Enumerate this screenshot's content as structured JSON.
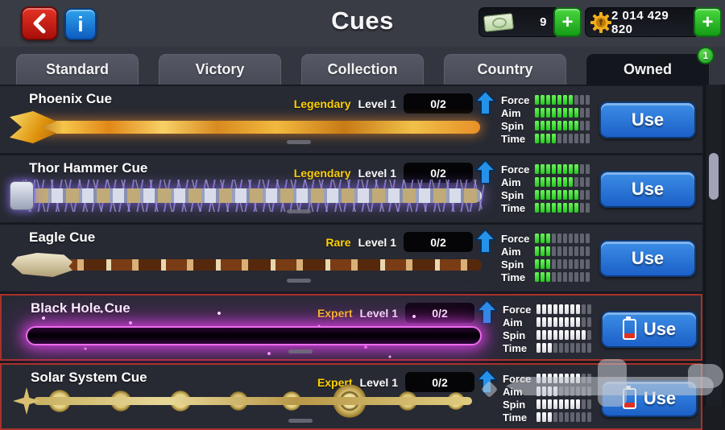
{
  "header": {
    "title": "Cues",
    "cash": {
      "value": "9",
      "add": "+"
    },
    "coins": {
      "value": "2 014 429 820",
      "add": "+"
    }
  },
  "tabs": [
    {
      "label": "Standard",
      "active": false
    },
    {
      "label": "Victory",
      "active": false
    },
    {
      "label": "Collection",
      "active": false
    },
    {
      "label": "Country",
      "active": false
    },
    {
      "label": "Owned",
      "active": true
    }
  ],
  "owned_badge": "1",
  "stat_labels": [
    "Force",
    "Aim",
    "Spin",
    "Time"
  ],
  "use_label": "Use",
  "cues": [
    {
      "name": "Phoenix Cue",
      "rarity": "Legendary",
      "level": "Level 1",
      "progress": "0/2",
      "stats": [
        7,
        8,
        8,
        4
      ],
      "max_segments": 10,
      "bar_style": "green",
      "highlight": false,
      "battery": false,
      "theme": "phoenix"
    },
    {
      "name": "Thor Hammer Cue",
      "rarity": "Legendary",
      "level": "Level 1",
      "progress": "0/2",
      "stats": [
        8,
        7,
        8,
        8
      ],
      "max_segments": 10,
      "bar_style": "green",
      "highlight": false,
      "battery": false,
      "theme": "thor"
    },
    {
      "name": "Eagle Cue",
      "rarity": "Rare",
      "level": "Level 1",
      "progress": "0/2",
      "stats": [
        3,
        3,
        3,
        3
      ],
      "max_segments": 10,
      "bar_style": "green",
      "highlight": false,
      "battery": false,
      "theme": "eagle"
    },
    {
      "name": "Black Hole Cue",
      "rarity": "Expert",
      "level": "Level 1",
      "progress": "0/2",
      "stats": [
        8,
        8,
        9,
        3
      ],
      "max_segments": 10,
      "bar_style": "white",
      "highlight": true,
      "battery": true,
      "theme": "blackhole"
    },
    {
      "name": "Solar System Cue",
      "rarity": "Expert",
      "level": "Level 1",
      "progress": "0/2",
      "stats": [
        8,
        4,
        8,
        3
      ],
      "max_segments": 10,
      "bar_style": "white",
      "highlight": true,
      "battery": true,
      "theme": "solar"
    }
  ],
  "colors": {
    "rarity_yellow": "#ffd102",
    "bar_green": "#3fe23f",
    "bar_white": "#eeeeee",
    "use_button_blue": "#1f6fd2",
    "highlight_red": "#a8322a",
    "badge_green": "#2fc32f",
    "back_red": "#c41a12",
    "info_blue": "#1a7ad6"
  }
}
